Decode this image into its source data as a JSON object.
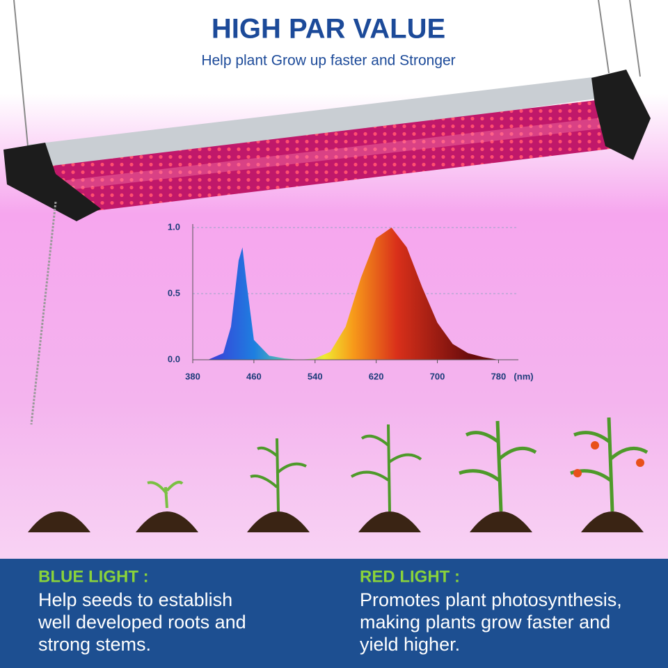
{
  "header": {
    "title": "HIGH PAR VALUE",
    "subtitle": "Help plant Grow up faster and Stronger"
  },
  "chart_data": {
    "type": "area",
    "x": [
      400,
      420,
      430,
      440,
      445,
      450,
      460,
      480,
      500,
      520,
      540,
      560,
      580,
      600,
      620,
      640,
      660,
      680,
      700,
      720,
      740,
      760,
      780
    ],
    "values": [
      0,
      0.05,
      0.25,
      0.75,
      0.85,
      0.6,
      0.15,
      0.03,
      0.01,
      0,
      0.01,
      0.06,
      0.25,
      0.62,
      0.92,
      1.0,
      0.85,
      0.55,
      0.28,
      0.12,
      0.05,
      0.02,
      0
    ],
    "xlim": [
      380,
      806
    ],
    "ylim": [
      0,
      1
    ],
    "xticks": [
      380,
      460,
      540,
      620,
      700,
      780
    ],
    "x_unit": "(nm)",
    "yticks": [
      {
        "value": 0,
        "label": "0.0"
      },
      {
        "value": 0.5,
        "label": "0.5"
      },
      {
        "value": 1,
        "label": "1.0"
      }
    ],
    "grid": true
  },
  "panels": [
    {
      "title": "BLUE LIGHT :",
      "lines": [
        "Help seeds to establish",
        "well developed roots and",
        "strong stems."
      ]
    },
    {
      "title": "RED LIGHT :",
      "lines": [
        "Promotes plant photosynthesis,",
        "making plants grow faster and",
        "yield higher."
      ]
    }
  ]
}
